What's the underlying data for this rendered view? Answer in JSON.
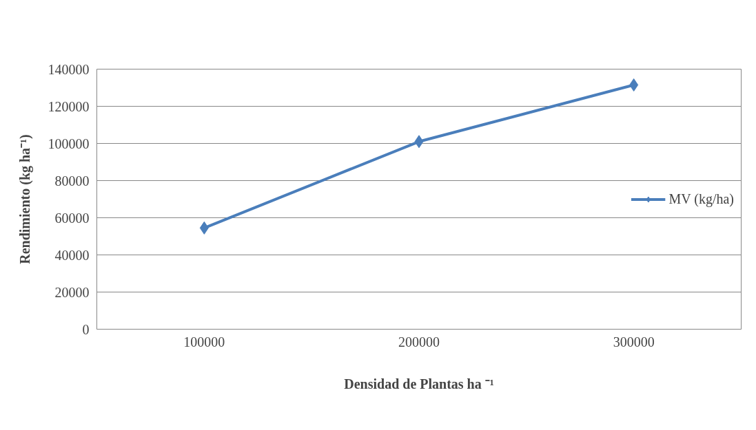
{
  "chart_data": {
    "type": "line",
    "xlabel": "Densidad de Plantas ha ⁻¹",
    "ylabel": "Rendimiento (kg ha⁻¹)",
    "categories": [
      "100000",
      "200000",
      "300000"
    ],
    "series": [
      {
        "name": "MV (kg/ha)",
        "color": "#4a7ebb",
        "values": [
          54500,
          101000,
          131500
        ]
      }
    ],
    "ylim": [
      0,
      140000
    ],
    "yticks": [
      0,
      20000,
      40000,
      60000,
      80000,
      100000,
      120000,
      140000
    ],
    "grid": "y",
    "legend": "right",
    "marker": "diamond",
    "line_style": "solid"
  }
}
